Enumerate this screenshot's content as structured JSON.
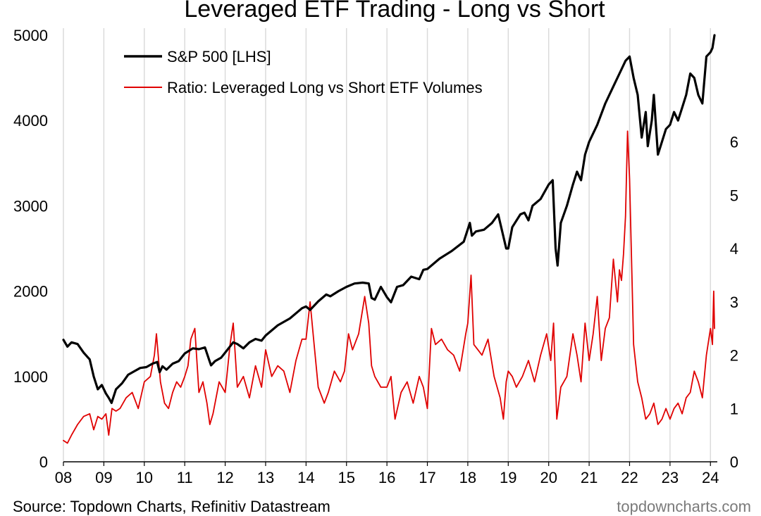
{
  "chart_data": {
    "type": "line",
    "title": "Leveraged ETF Trading - Long vs Short",
    "x_labels": [
      "08",
      "09",
      "10",
      "11",
      "12",
      "13",
      "14",
      "15",
      "16",
      "17",
      "18",
      "19",
      "20",
      "21",
      "22",
      "23",
      "24"
    ],
    "x_range": [
      2008.0,
      2024.1
    ],
    "grid": "vertical",
    "legend_position": "top-left",
    "left_axis": {
      "ticks": [
        0,
        1000,
        2000,
        3000,
        4000,
        5000
      ],
      "ylim": [
        0,
        5000
      ]
    },
    "right_axis": {
      "ticks": [
        0,
        1,
        2,
        3,
        4,
        5,
        6
      ],
      "ylim": [
        0,
        8
      ]
    },
    "series": [
      {
        "name": "S&P 500 [LHS]",
        "axis": "left",
        "color": "#000000",
        "x": [
          2008.0,
          2008.1,
          2008.2,
          2008.35,
          2008.5,
          2008.65,
          2008.75,
          2008.85,
          2008.95,
          2009.05,
          2009.12,
          2009.19,
          2009.3,
          2009.45,
          2009.6,
          2009.75,
          2009.9,
          2010.05,
          2010.2,
          2010.32,
          2010.38,
          2010.45,
          2010.55,
          2010.7,
          2010.85,
          2011.0,
          2011.2,
          2011.35,
          2011.5,
          2011.6,
          2011.65,
          2011.75,
          2011.9,
          2012.0,
          2012.2,
          2012.3,
          2012.45,
          2012.6,
          2012.75,
          2012.9,
          2013.0,
          2013.3,
          2013.6,
          2013.9,
          2014.0,
          2014.1,
          2014.3,
          2014.5,
          2014.6,
          2014.8,
          2015.0,
          2015.2,
          2015.4,
          2015.55,
          2015.62,
          2015.7,
          2015.85,
          2016.0,
          2016.1,
          2016.25,
          2016.4,
          2016.5,
          2016.6,
          2016.8,
          2016.9,
          2017.0,
          2017.3,
          2017.6,
          2017.9,
          2018.05,
          2018.1,
          2018.2,
          2018.4,
          2018.6,
          2018.75,
          2018.85,
          2018.95,
          2019.0,
          2019.1,
          2019.3,
          2019.4,
          2019.5,
          2019.6,
          2019.8,
          2020.0,
          2020.1,
          2020.17,
          2020.22,
          2020.3,
          2020.45,
          2020.6,
          2020.7,
          2020.8,
          2020.9,
          2021.0,
          2021.2,
          2021.4,
          2021.6,
          2021.8,
          2021.9,
          2022.0,
          2022.1,
          2022.2,
          2022.3,
          2022.4,
          2022.45,
          2022.55,
          2022.6,
          2022.7,
          2022.8,
          2022.9,
          2023.0,
          2023.1,
          2023.2,
          2023.3,
          2023.4,
          2023.5,
          2023.6,
          2023.7,
          2023.8,
          2023.9,
          2024.0,
          2024.05,
          2024.1
        ],
        "y": [
          1430,
          1350,
          1400,
          1380,
          1280,
          1200,
          1000,
          850,
          900,
          800,
          750,
          690,
          850,
          920,
          1020,
          1060,
          1100,
          1110,
          1150,
          1170,
          1050,
          1120,
          1080,
          1150,
          1180,
          1270,
          1330,
          1320,
          1340,
          1200,
          1130,
          1180,
          1220,
          1280,
          1400,
          1380,
          1330,
          1400,
          1440,
          1420,
          1480,
          1600,
          1680,
          1800,
          1820,
          1780,
          1880,
          1960,
          1940,
          2000,
          2050,
          2090,
          2100,
          2090,
          1920,
          1900,
          2050,
          1930,
          1870,
          2050,
          2070,
          2120,
          2170,
          2140,
          2250,
          2260,
          2380,
          2470,
          2580,
          2800,
          2650,
          2700,
          2720,
          2800,
          2900,
          2700,
          2500,
          2500,
          2750,
          2900,
          2920,
          2830,
          3000,
          3080,
          3250,
          3300,
          2500,
          2300,
          2800,
          3000,
          3250,
          3400,
          3300,
          3600,
          3750,
          3950,
          4200,
          4400,
          4600,
          4700,
          4750,
          4500,
          4300,
          3800,
          4100,
          3700,
          4000,
          4300,
          3600,
          3750,
          3900,
          3950,
          4100,
          4000,
          4150,
          4300,
          4550,
          4500,
          4300,
          4200,
          4750,
          4800,
          4850,
          5000
        ]
      },
      {
        "name": "Ratio: Leveraged Long vs Short ETF Volumes",
        "axis": "right",
        "color": "#e00000",
        "x": [
          2008.0,
          2008.1,
          2008.2,
          2008.35,
          2008.5,
          2008.65,
          2008.75,
          2008.85,
          2008.95,
          2009.05,
          2009.12,
          2009.2,
          2009.3,
          2009.4,
          2009.55,
          2009.7,
          2009.85,
          2010.0,
          2010.15,
          2010.25,
          2010.3,
          2010.4,
          2010.5,
          2010.6,
          2010.7,
          2010.8,
          2010.9,
          2011.0,
          2011.08,
          2011.15,
          2011.25,
          2011.35,
          2011.45,
          2011.55,
          2011.62,
          2011.7,
          2011.85,
          2012.0,
          2012.12,
          2012.2,
          2012.3,
          2012.45,
          2012.6,
          2012.75,
          2012.9,
          2013.0,
          2013.15,
          2013.3,
          2013.45,
          2013.6,
          2013.75,
          2013.9,
          2014.0,
          2014.1,
          2014.2,
          2014.3,
          2014.45,
          2014.55,
          2014.7,
          2014.85,
          2014.95,
          2015.05,
          2015.15,
          2015.3,
          2015.45,
          2015.55,
          2015.62,
          2015.7,
          2015.85,
          2016.0,
          2016.1,
          2016.2,
          2016.35,
          2016.5,
          2016.65,
          2016.8,
          2016.9,
          2017.0,
          2017.1,
          2017.2,
          2017.35,
          2017.5,
          2017.65,
          2017.8,
          2017.95,
          2018.0,
          2018.08,
          2018.15,
          2018.25,
          2018.35,
          2018.5,
          2018.65,
          2018.8,
          2018.88,
          2018.95,
          2019.0,
          2019.1,
          2019.2,
          2019.35,
          2019.5,
          2019.65,
          2019.8,
          2019.95,
          2020.05,
          2020.12,
          2020.2,
          2020.3,
          2020.45,
          2020.6,
          2020.7,
          2020.8,
          2020.9,
          2021.0,
          2021.1,
          2021.2,
          2021.3,
          2021.4,
          2021.5,
          2021.6,
          2021.7,
          2021.75,
          2021.8,
          2021.85,
          2021.9,
          2021.95,
          2022.0,
          2022.1,
          2022.2,
          2022.3,
          2022.4,
          2022.5,
          2022.6,
          2022.7,
          2022.8,
          2022.9,
          2023.0,
          2023.1,
          2023.2,
          2023.3,
          2023.4,
          2023.5,
          2023.6,
          2023.7,
          2023.8,
          2023.9,
          2024.0,
          2024.05,
          2024.08,
          2024.1
        ],
        "y": [
          0.4,
          0.35,
          0.5,
          0.7,
          0.85,
          0.9,
          0.6,
          0.85,
          0.8,
          0.9,
          0.5,
          1.0,
          0.95,
          1.0,
          1.2,
          1.3,
          1.0,
          1.5,
          1.6,
          2.0,
          2.4,
          1.5,
          1.1,
          1.0,
          1.3,
          1.5,
          1.4,
          1.6,
          1.8,
          2.3,
          2.5,
          1.3,
          1.5,
          1.1,
          0.7,
          0.9,
          1.5,
          1.3,
          2.2,
          2.6,
          1.4,
          1.6,
          1.2,
          1.8,
          1.4,
          2.1,
          1.6,
          1.8,
          1.7,
          1.3,
          1.9,
          2.3,
          2.3,
          3.0,
          2.2,
          1.4,
          1.1,
          1.3,
          1.7,
          1.5,
          1.7,
          2.4,
          2.1,
          2.4,
          3.1,
          2.6,
          1.8,
          1.6,
          1.4,
          1.4,
          1.6,
          0.8,
          1.3,
          1.5,
          1.1,
          1.6,
          1.4,
          1.0,
          2.5,
          2.2,
          2.3,
          2.1,
          2.0,
          1.7,
          2.4,
          2.6,
          3.5,
          2.2,
          2.1,
          2.0,
          2.3,
          1.6,
          1.2,
          0.8,
          1.5,
          1.7,
          1.6,
          1.4,
          1.6,
          1.9,
          1.5,
          2.0,
          2.4,
          1.9,
          2.6,
          0.8,
          1.4,
          1.6,
          2.4,
          2.0,
          1.5,
          2.6,
          1.9,
          2.4,
          3.1,
          1.9,
          2.5,
          2.7,
          3.8,
          3.0,
          3.6,
          3.4,
          3.9,
          4.6,
          6.2,
          5.3,
          2.2,
          1.5,
          1.2,
          0.8,
          0.9,
          1.1,
          0.7,
          0.8,
          1.0,
          0.8,
          1.0,
          1.1,
          0.9,
          1.2,
          1.3,
          1.7,
          1.5,
          1.2,
          2.0,
          2.5,
          2.2,
          3.2,
          2.5
        ]
      }
    ],
    "source_note": "Source: Topdown Charts, Refinitiv Datastream",
    "watermark": "topdowncharts.com"
  }
}
